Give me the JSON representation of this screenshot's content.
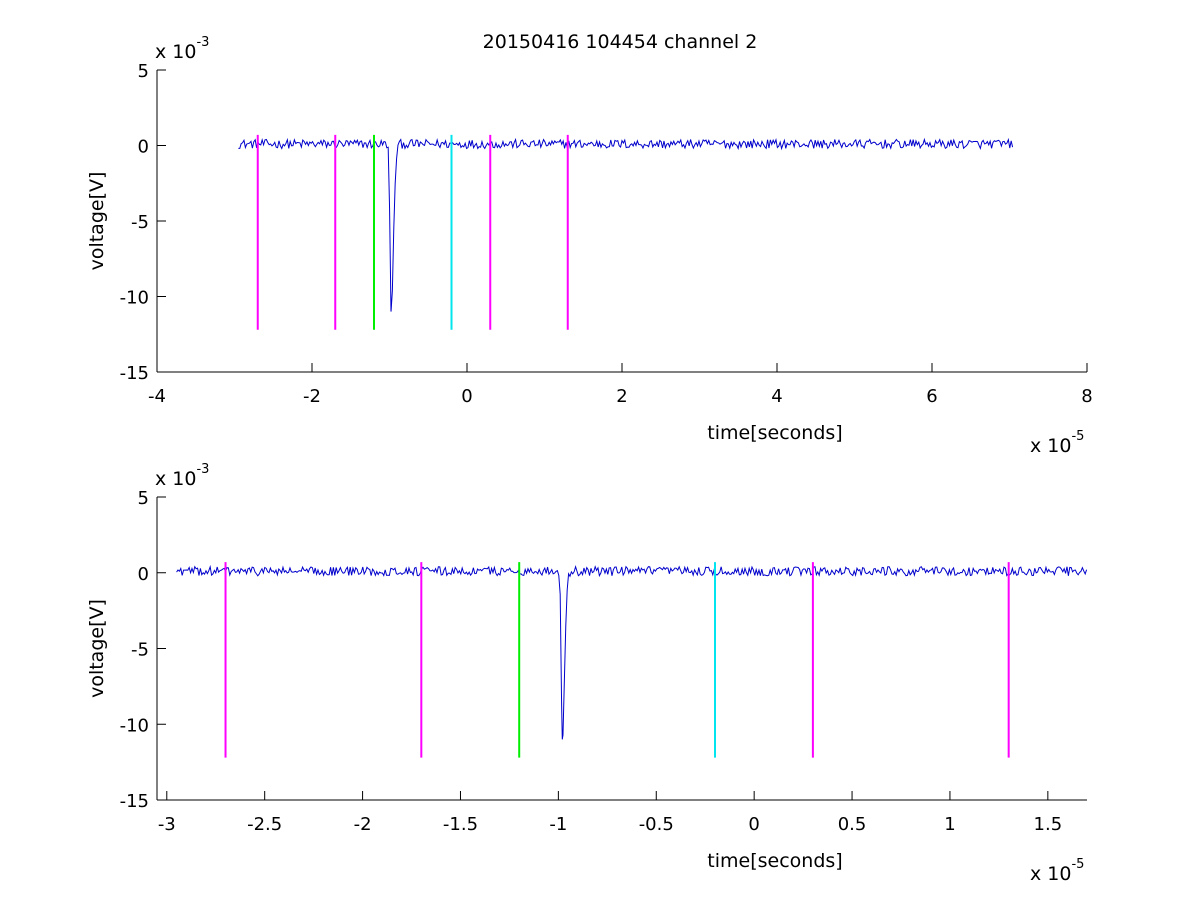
{
  "figure_title": "20150416 104454 channel 2",
  "colors": {
    "signal": "#0000cc",
    "magenta": "#ff00ff",
    "green": "#00ee00",
    "cyan": "#00e5ee",
    "axes": "#000000"
  },
  "chart_data": [
    {
      "type": "line",
      "title": "20150416 104454 channel 2",
      "xlabel": "time[seconds]",
      "ylabel": "voltage[V]",
      "x_exponent_label": "x 10",
      "x_exponent": "-5",
      "y_exponent_label": "x 10",
      "y_exponent": "-3",
      "xlim": [
        -4,
        8
      ],
      "ylim": [
        -15,
        5
      ],
      "xticks": [
        -4,
        -2,
        0,
        2,
        4,
        6,
        8
      ],
      "xtick_labels": [
        "-4",
        "-2",
        "0",
        "2",
        "4",
        "6",
        "8"
      ],
      "yticks": [
        -15,
        -10,
        -5,
        0,
        5
      ],
      "ytick_labels": [
        "-15",
        "-10",
        "-5",
        "0",
        "5"
      ],
      "grid": false,
      "series": [
        {
          "x_range": [
            -2.95,
            7.05
          ],
          "baseline": 0.1,
          "noise_amplitude": 0.3,
          "pulse_center": -0.98,
          "pulse_min": -11.0,
          "pulse_width": 0.08
        }
      ],
      "markers": [
        {
          "x": -2.7,
          "color": "magenta",
          "y_bottom": -12.2,
          "y_top": 0.7
        },
        {
          "x": -1.7,
          "color": "magenta",
          "y_bottom": -12.2,
          "y_top": 0.7
        },
        {
          "x": -1.2,
          "color": "green",
          "y_bottom": -12.2,
          "y_top": 0.7
        },
        {
          "x": -0.2,
          "color": "cyan",
          "y_bottom": -12.2,
          "y_top": 0.7
        },
        {
          "x": 0.3,
          "color": "magenta",
          "y_bottom": -12.2,
          "y_top": 0.7
        },
        {
          "x": 1.3,
          "color": "magenta",
          "y_bottom": -12.2,
          "y_top": 0.7
        }
      ]
    },
    {
      "type": "line",
      "title": "",
      "xlabel": "time[seconds]",
      "ylabel": "voltage[V]",
      "x_exponent_label": "x 10",
      "x_exponent": "-5",
      "y_exponent_label": "x 10",
      "y_exponent": "-3",
      "xlim": [
        -3.05,
        1.7
      ],
      "ylim": [
        -15,
        5
      ],
      "xticks": [
        -3,
        -2.5,
        -2,
        -1.5,
        -1,
        -0.5,
        0,
        0.5,
        1,
        1.5
      ],
      "xtick_labels": [
        "-3",
        "-2.5",
        "-2",
        "-1.5",
        "-1",
        "-0.5",
        "0",
        "0.5",
        "1",
        "1.5"
      ],
      "yticks": [
        -15,
        -10,
        -5,
        0,
        5
      ],
      "ytick_labels": [
        "-15",
        "-10",
        "-5",
        "0",
        "5"
      ],
      "grid": false,
      "series": [
        {
          "x_range": [
            -2.95,
            1.7
          ],
          "baseline": 0.1,
          "noise_amplitude": 0.3,
          "pulse_center": -0.98,
          "pulse_min": -11.0,
          "pulse_width": 0.03
        }
      ],
      "markers": [
        {
          "x": -2.7,
          "color": "magenta",
          "y_bottom": -12.2,
          "y_top": 0.7
        },
        {
          "x": -1.7,
          "color": "magenta",
          "y_bottom": -12.2,
          "y_top": 0.7
        },
        {
          "x": -1.2,
          "color": "green",
          "y_bottom": -12.2,
          "y_top": 0.7
        },
        {
          "x": -0.2,
          "color": "cyan",
          "y_bottom": -12.2,
          "y_top": 0.7
        },
        {
          "x": 0.3,
          "color": "magenta",
          "y_bottom": -12.2,
          "y_top": 0.7
        },
        {
          "x": 1.3,
          "color": "magenta",
          "y_bottom": -12.2,
          "y_top": 0.7
        }
      ]
    }
  ]
}
